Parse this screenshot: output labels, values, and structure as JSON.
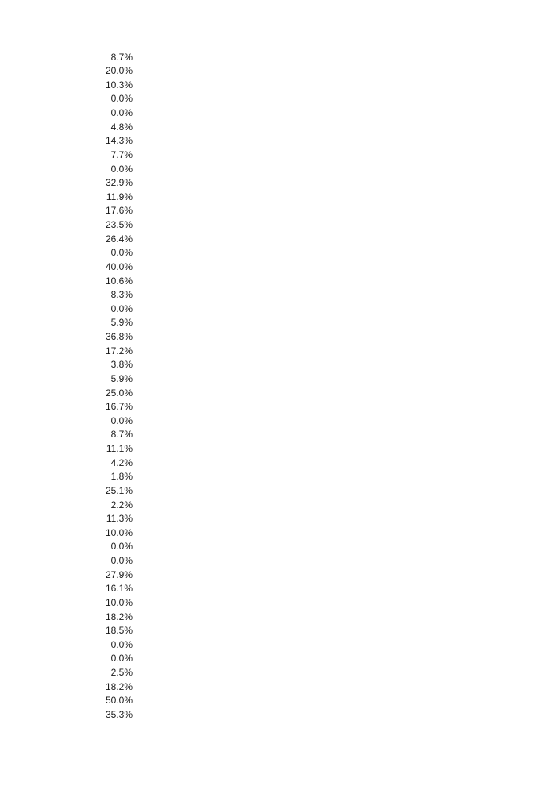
{
  "values": [
    "8.7%",
    "20.0%",
    "10.3%",
    "0.0%",
    "0.0%",
    "4.8%",
    "14.3%",
    "7.7%",
    "0.0%",
    "32.9%",
    "11.9%",
    "17.6%",
    "23.5%",
    "26.4%",
    "0.0%",
    "40.0%",
    "10.6%",
    "8.3%",
    "0.0%",
    "5.9%",
    "36.8%",
    "17.2%",
    "3.8%",
    "5.9%",
    "25.0%",
    "16.7%",
    "0.0%",
    "8.7%",
    "11.1%",
    "4.2%",
    "1.8%",
    "25.1%",
    "2.2%",
    "11.3%",
    "10.0%",
    "0.0%",
    "0.0%",
    "27.9%",
    "16.1%",
    "10.0%",
    "18.2%",
    "18.5%",
    "0.0%",
    "0.0%",
    "2.5%",
    "18.2%",
    "50.0%",
    "35.3%"
  ]
}
